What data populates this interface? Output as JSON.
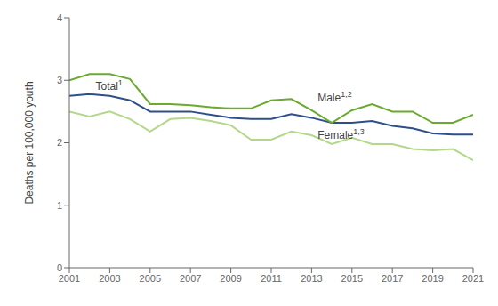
{
  "chart_data": {
    "type": "line",
    "ylabel": "Deaths per 100,000 youth",
    "x": [
      2001,
      2002,
      2003,
      2004,
      2005,
      2006,
      2007,
      2008,
      2009,
      2010,
      2011,
      2012,
      2013,
      2014,
      2015,
      2016,
      2017,
      2018,
      2019,
      2020,
      2021
    ],
    "series": [
      {
        "name": "Female",
        "color": "#b3d88a",
        "values": [
          2.5,
          2.42,
          2.5,
          2.38,
          2.18,
          2.38,
          2.4,
          2.35,
          2.28,
          2.05,
          2.05,
          2.18,
          2.12,
          1.98,
          2.08,
          1.98,
          1.98,
          1.9,
          1.88,
          1.9,
          1.72
        ]
      },
      {
        "name": "Total",
        "color": "#2e4f8a",
        "values": [
          2.75,
          2.78,
          2.75,
          2.68,
          2.5,
          2.5,
          2.5,
          2.45,
          2.4,
          2.38,
          2.38,
          2.46,
          2.4,
          2.32,
          2.32,
          2.35,
          2.27,
          2.23,
          2.15,
          2.13,
          2.13
        ]
      },
      {
        "name": "Male",
        "color": "#6aaa2e",
        "values": [
          3.0,
          3.1,
          3.1,
          3.02,
          2.62,
          2.62,
          2.6,
          2.57,
          2.55,
          2.55,
          2.68,
          2.7,
          2.52,
          2.32,
          2.52,
          2.62,
          2.5,
          2.5,
          2.32,
          2.32,
          2.45
        ]
      }
    ],
    "xlim": [
      2001,
      2021
    ],
    "xticks": [
      2001,
      2003,
      2005,
      2007,
      2009,
      2011,
      2013,
      2015,
      2017,
      2019,
      2021
    ],
    "ylim": [
      0,
      4
    ],
    "yticks": [
      0,
      1,
      2,
      3,
      4
    ],
    "grid": false,
    "annotations": [
      {
        "text": "Total",
        "superscript": "1",
        "x": 2002.3,
        "y": 2.84
      },
      {
        "text": "Male",
        "superscript": "1,2",
        "x": 2013.3,
        "y": 2.66
      },
      {
        "text": "Female",
        "superscript": "1,3",
        "x": 2013.3,
        "y": 2.06
      }
    ]
  }
}
